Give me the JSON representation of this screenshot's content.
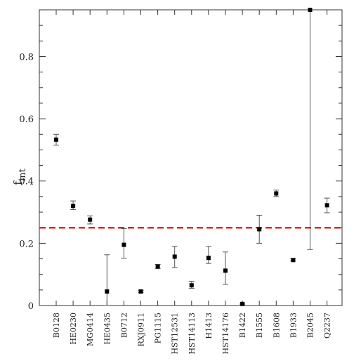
{
  "chart_data": {
    "type": "scatter",
    "xlabel": "",
    "ylabel": "f",
    "ylabel_subscript": "int",
    "ylim": [
      0,
      0.95
    ],
    "yticks": [
      0,
      0.2,
      0.4,
      0.6,
      0.8
    ],
    "ytick_labels": [
      "0",
      "0.2",
      "0.4",
      "0.6",
      "0.8"
    ],
    "grid": false,
    "categories": [
      "B0128",
      "HE0230",
      "MG0414",
      "HE0435",
      "B0712",
      "RXJ0911",
      "PG1115",
      "HST12531",
      "HST14113",
      "H1413",
      "HST14176",
      "B1422",
      "B1555",
      "B1608",
      "B1933",
      "B2045",
      "Q2237"
    ],
    "values": [
      0.533,
      0.32,
      0.276,
      0.045,
      0.195,
      0.045,
      0.125,
      0.157,
      0.065,
      0.153,
      0.112,
      0.005,
      0.245,
      0.36,
      0.146,
      0.95,
      0.322
    ],
    "err_low": [
      0.515,
      0.308,
      0.262,
      0.0,
      0.152,
      0.042,
      0.119,
      0.122,
      0.055,
      0.135,
      0.068,
      0.004,
      0.2,
      0.35,
      0.143,
      0.18,
      0.298
    ],
    "err_high": [
      0.55,
      0.336,
      0.288,
      0.163,
      0.247,
      0.049,
      0.132,
      0.19,
      0.078,
      0.19,
      0.172,
      0.008,
      0.29,
      0.371,
      0.15,
      0.95,
      0.345
    ],
    "reference_line": {
      "value": 0.25,
      "style": "dashed",
      "color": "#e8231e"
    },
    "marker_color": "#000000",
    "errorbar_color": "#555555"
  }
}
